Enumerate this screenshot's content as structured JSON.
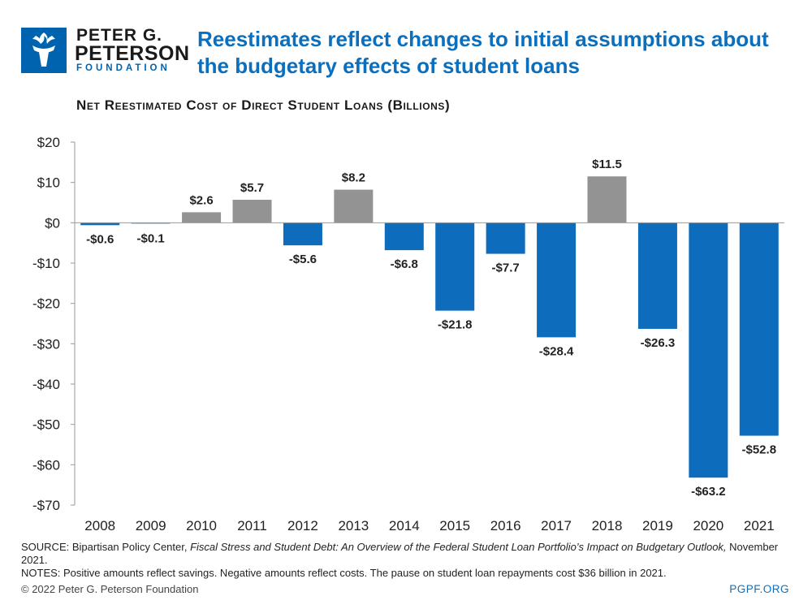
{
  "brand": {
    "line1": "PETER G.",
    "line2": "PETERSON",
    "line3": "FOUNDATION",
    "color": "#0063b0"
  },
  "headline": "Reestimates reflect changes to initial assumptions about the budgetary effects of student loans",
  "colors": {
    "positive": "#939393",
    "negative": "#0d6cbb"
  },
  "chart_data": {
    "type": "bar",
    "title": "Net Reestimated Cost of Direct Student Loans (Billions)",
    "categories": [
      "2008",
      "2009",
      "2010",
      "2011",
      "2012",
      "2013",
      "2014",
      "2015",
      "2016",
      "2017",
      "2018",
      "2019",
      "2020",
      "2021"
    ],
    "values": [
      -0.6,
      -0.1,
      2.6,
      5.7,
      -5.6,
      8.2,
      -6.8,
      -21.8,
      -7.7,
      -28.4,
      11.5,
      -26.3,
      -63.2,
      -52.8
    ],
    "data_labels": [
      "-$0.6",
      "-$0.1",
      "$2.6",
      "$5.7",
      "-$5.6",
      "$8.2",
      "-$6.8",
      "-$21.8",
      "-$7.7",
      "-$28.4",
      "$11.5",
      "-$26.3",
      "-$63.2",
      "-$52.8"
    ],
    "ylim": [
      -70,
      20
    ],
    "yticks": [
      20,
      10,
      0,
      -10,
      -20,
      -30,
      -40,
      -50,
      -60,
      -70
    ],
    "ytick_labels": [
      "$20",
      "$10",
      "$0",
      "-$10",
      "-$20",
      "-$30",
      "-$40",
      "-$50",
      "-$60",
      "-$70"
    ],
    "xlabel": "",
    "ylabel": "",
    "grid": false
  },
  "source": {
    "prefix": "SOURCE: Bipartisan Policy Center, ",
    "italic": "Fiscal Stress and Student Debt: An Overview of the Federal Student Loan Portfolio’s Impact on Budgetary Outlook,",
    "suffix": " November 2021.",
    "notes": "NOTES: Positive amounts reflect savings. Negative amounts reflect costs. The pause on student loan repayments cost $36 billion in 2021."
  },
  "copyright": "© 2022 Peter G. Peterson Foundation",
  "site": "PGPF.ORG"
}
